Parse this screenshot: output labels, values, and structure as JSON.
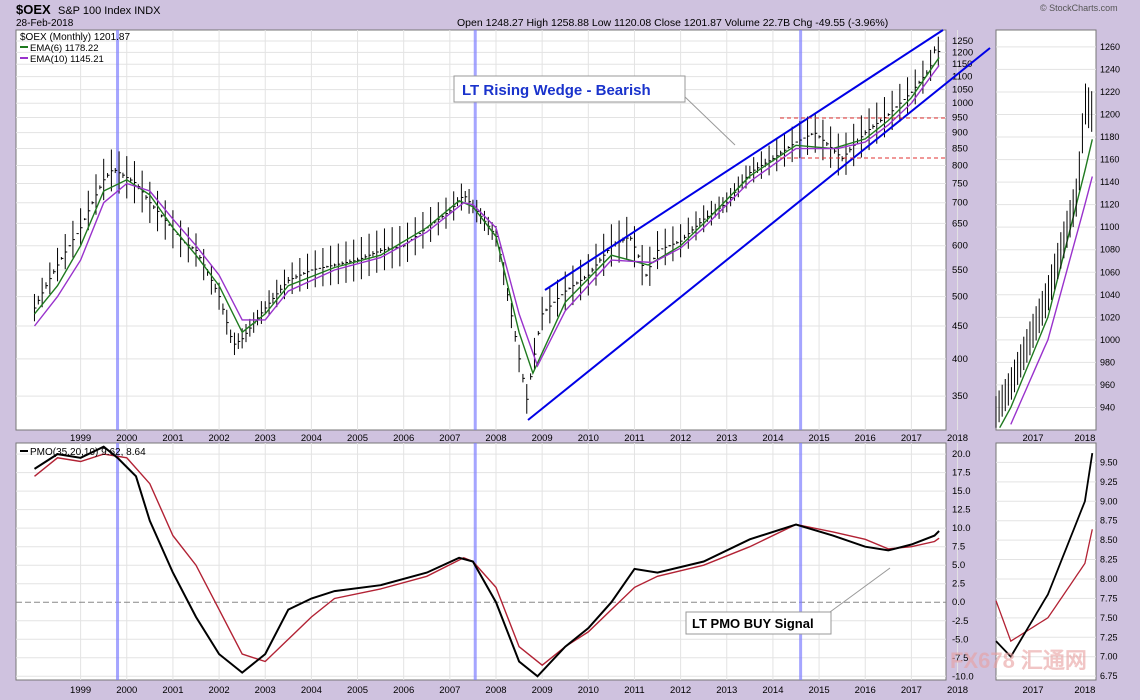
{
  "header": {
    "symbol": "$OEX",
    "name": "S&P 100 Index INDX",
    "date": "28-Feb-2018",
    "watermark": "© StockCharts.com",
    "quote": "Open 1248.27  High 1258.88  Low 1120.08  Close 1201.87  Volume 22.7B  Chg -49.55 (-3.96%)"
  },
  "legend": {
    "price": "$OEX (Monthly) 1201.87",
    "ema6": "EMA(6) 1178.22",
    "ema10": "EMA(10) 1145.21",
    "pmo": "PMO(35,20,10) 9.62, 8.64"
  },
  "annotations": {
    "wedge": "LT Rising Wedge - Bearish",
    "pmo_signal": "LT PMO BUY Signal"
  },
  "brand_watermark": "FX678 汇通网",
  "colors": {
    "background": "#cfc2df",
    "plot": "#ffffff",
    "price_bars": "#000000",
    "ema6": "#1f7a1f",
    "ema10": "#9932cc",
    "pmo": "#000000",
    "pmo_signal": "#b22234",
    "trendline": "#0000e6",
    "support_resistance": "#e03030",
    "vertical_marker": "#8080ff"
  },
  "chart_data": [
    {
      "type": "line",
      "panel": "main-price",
      "scale": "log",
      "x_ticks": [
        "1999",
        "2000",
        "2001",
        "2002",
        "2003",
        "2004",
        "2005",
        "2006",
        "2007",
        "2008",
        "2009",
        "2010",
        "2011",
        "2012",
        "2013",
        "2014",
        "2015",
        "2016",
        "2017",
        "2018"
      ],
      "y_ticks": [
        350,
        400,
        450,
        500,
        550,
        600,
        650,
        700,
        750,
        800,
        850,
        900,
        950,
        1000,
        1050,
        1100,
        1150,
        1200,
        1250
      ],
      "ylim": [
        310,
        1300
      ],
      "series": [
        {
          "name": "$OEX (Monthly)",
          "x": [
            1998.5,
            1999,
            1999.5,
            2000,
            2000.2,
            2000.7,
            2001,
            2001.7,
            2002,
            2002.5,
            2002.8,
            2003,
            2003.5,
            2004,
            2004.5,
            2005,
            2005.5,
            2006,
            2006.5,
            2007,
            2007.5,
            2007.8,
            2008,
            2008.5,
            2008.8,
            2009,
            2009.17,
            2009.5,
            2010,
            2010.5,
            2011,
            2011.4,
            2011.75,
            2012,
            2012.5,
            2013,
            2013.5,
            2014,
            2014.5,
            2015,
            2015.4,
            2015.7,
            2016,
            2016.5,
            2017,
            2017.5,
            2017.9,
            2018,
            2018.1
          ],
          "values": [
            480,
            560,
            640,
            760,
            790,
            750,
            700,
            610,
            590,
            500,
            420,
            430,
            480,
            530,
            550,
            560,
            570,
            590,
            600,
            640,
            680,
            720,
            690,
            620,
            480,
            400,
            345,
            470,
            510,
            540,
            600,
            620,
            540,
            590,
            610,
            660,
            700,
            780,
            820,
            870,
            900,
            860,
            820,
            900,
            960,
            1040,
            1130,
            1210,
            1202
          ]
        },
        {
          "name": "EMA(6)",
          "x": [
            1998.5,
            1999,
            1999.5,
            2000,
            2000.5,
            2001,
            2001.5,
            2002,
            2002.5,
            2003,
            2003.5,
            2004,
            2005,
            2006,
            2007,
            2007.7,
            2008,
            2008.5,
            2009,
            2009.3,
            2010,
            2011,
            2011.8,
            2012.5,
            2013,
            2014,
            2015,
            2015.8,
            2016.5,
            2017,
            2017.5,
            2018,
            2018.1
          ],
          "values": [
            470,
            520,
            600,
            730,
            760,
            720,
            640,
            580,
            520,
            440,
            470,
            520,
            555,
            580,
            640,
            705,
            690,
            620,
            440,
            380,
            490,
            580,
            560,
            600,
            650,
            770,
            860,
            850,
            880,
            940,
            1020,
            1150,
            1178
          ]
        },
        {
          "name": "EMA(10)",
          "x": [
            1998.5,
            1999,
            1999.5,
            2000,
            2000.5,
            2001,
            2001.5,
            2002,
            2002.5,
            2003,
            2003.5,
            2004,
            2005,
            2006,
            2007,
            2007.8,
            2008,
            2008.5,
            2009,
            2009.4,
            2010,
            2011,
            2011.9,
            2012.5,
            2013,
            2014,
            2015,
            2015.9,
            2016.5,
            2017,
            2017.5,
            2018,
            2018.1
          ],
          "values": [
            450,
            500,
            570,
            700,
            750,
            730,
            660,
            600,
            540,
            460,
            460,
            510,
            550,
            575,
            630,
            700,
            695,
            640,
            470,
            390,
            475,
            570,
            565,
            595,
            640,
            755,
            850,
            850,
            870,
            925,
            1000,
            1120,
            1145
          ]
        }
      ]
    },
    {
      "type": "line",
      "panel": "pmo",
      "x_ticks": [
        "1999",
        "2000",
        "2001",
        "2002",
        "2003",
        "2004",
        "2005",
        "2006",
        "2007",
        "2008",
        "2009",
        "2010",
        "2011",
        "2012",
        "2013",
        "2014",
        "2015",
        "2016",
        "2017",
        "2018"
      ],
      "y_ticks": [
        -10,
        -7.5,
        -5,
        -2.5,
        0,
        2.5,
        5,
        7.5,
        10,
        12.5,
        15,
        17.5,
        20
      ],
      "ylim": [
        -10.5,
        21.5
      ],
      "series": [
        {
          "name": "PMO",
          "x": [
            1998.5,
            1999,
            1999.5,
            2000,
            2000.3,
            2000.7,
            2001,
            2001.5,
            2002,
            2002.5,
            2003,
            2003.5,
            2004,
            2004.5,
            2005,
            2006,
            2007,
            2007.7,
            2008,
            2008.5,
            2009,
            2009.4,
            2010,
            2010.5,
            2011,
            2011.5,
            2012,
            2013,
            2014,
            2015,
            2015.8,
            2016.5,
            2017,
            2017.5,
            2018,
            2018.1
          ],
          "values": [
            18,
            20,
            19.5,
            21,
            19.5,
            17,
            11,
            4,
            -2,
            -7,
            -9.5,
            -7,
            -1,
            0.5,
            1.5,
            2.3,
            4,
            6,
            5.5,
            0,
            -8,
            -10,
            -6,
            -3.5,
            0,
            4.5,
            4,
            5.5,
            8.5,
            10.5,
            9,
            7.5,
            7,
            7.8,
            9,
            9.62
          ]
        },
        {
          "name": "Signal",
          "x": [
            1998.5,
            1999,
            1999.5,
            2000,
            2000.5,
            2001,
            2001.5,
            2002,
            2002.5,
            2003,
            2003.5,
            2004,
            2004.5,
            2005,
            2006,
            2007,
            2007.8,
            2008,
            2008.5,
            2009,
            2009.5,
            2010,
            2010.5,
            2011,
            2011.5,
            2012,
            2013,
            2014,
            2015,
            2015.8,
            2016.5,
            2017,
            2017.5,
            2018,
            2018.1
          ],
          "values": [
            17,
            19.5,
            19,
            20,
            19.5,
            16,
            9,
            5,
            -1,
            -7,
            -8,
            -5,
            -2,
            0.5,
            1.8,
            3.5,
            6,
            5.5,
            2,
            -6,
            -8.5,
            -6,
            -4,
            -1,
            2,
            3.5,
            5,
            7.5,
            10.5,
            9.5,
            8.5,
            7.2,
            7.5,
            8.2,
            8.64
          ]
        }
      ]
    }
  ]
}
